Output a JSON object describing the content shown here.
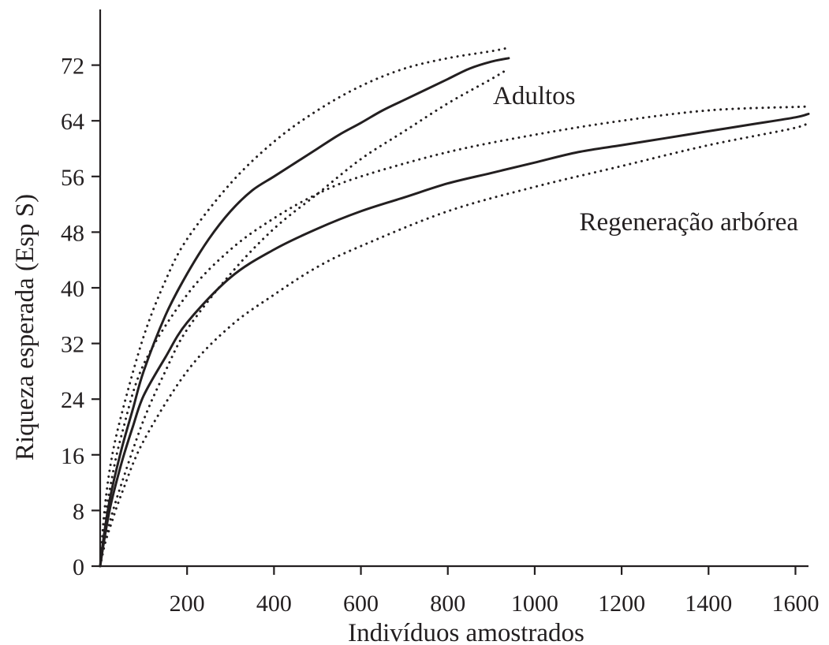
{
  "chart_data": {
    "type": "line",
    "title": "",
    "xlabel": "Indivíduos amostrados",
    "ylabel": "Riqueza esperada (Esp S)",
    "xlim": [
      0,
      1630
    ],
    "ylim": [
      0,
      80
    ],
    "xticks": [
      200,
      400,
      600,
      800,
      1000,
      1200,
      1400,
      1600
    ],
    "yticks": [
      0,
      8,
      16,
      24,
      32,
      40,
      48,
      56,
      64,
      72
    ],
    "grid": false,
    "legend": "none",
    "colors": {
      "ink": "#231f20"
    },
    "series": [
      {
        "name": "Adultos",
        "line_style": "solid",
        "x": [
          0,
          10,
          25,
          50,
          75,
          100,
          150,
          200,
          250,
          300,
          350,
          400,
          450,
          500,
          550,
          600,
          650,
          700,
          750,
          800,
          850,
          900,
          940
        ],
        "y": [
          0,
          5,
          10.5,
          17,
          22.5,
          28,
          36,
          42,
          47,
          51,
          54,
          56,
          58,
          60,
          62,
          63.7,
          65.5,
          67,
          68.5,
          70,
          71.5,
          72.5,
          73
        ],
        "ci_upper": {
          "x": [
            0,
            10,
            25,
            50,
            100,
            150,
            200,
            300,
            400,
            500,
            600,
            700,
            800,
            900,
            940
          ],
          "y": [
            0,
            8,
            15,
            22,
            33,
            41,
            47,
            55,
            61,
            65.5,
            69,
            71.5,
            73,
            74,
            74.5
          ]
        },
        "ci_lower": {
          "x": [
            0,
            10,
            25,
            50,
            100,
            150,
            200,
            300,
            400,
            500,
            600,
            700,
            800,
            900,
            940
          ],
          "y": [
            0,
            3,
            7,
            12,
            21,
            28,
            34,
            42,
            48.5,
            53.5,
            58.5,
            62.5,
            66.5,
            70,
            71.5
          ]
        }
      },
      {
        "name": "Regeneração arbórea",
        "line_style": "solid",
        "x": [
          0,
          10,
          25,
          50,
          75,
          100,
          150,
          200,
          300,
          400,
          500,
          600,
          700,
          800,
          900,
          1000,
          1100,
          1200,
          1300,
          1400,
          1500,
          1600,
          1630
        ],
        "y": [
          0,
          4,
          9,
          15,
          20,
          24.5,
          30,
          35,
          41.5,
          45.5,
          48.5,
          51,
          53,
          55,
          56.5,
          58,
          59.5,
          60.5,
          61.5,
          62.5,
          63.5,
          64.5,
          65
        ],
        "ci_upper": {
          "x": [
            0,
            10,
            25,
            50,
            100,
            200,
            300,
            400,
            500,
            600,
            800,
            1000,
            1200,
            1400,
            1600,
            1630
          ],
          "y": [
            0,
            6,
            12,
            19,
            29,
            39,
            45.5,
            50,
            53.5,
            56,
            59.5,
            62,
            64,
            65.5,
            66,
            66
          ]
        },
        "ci_lower": {
          "x": [
            0,
            10,
            25,
            50,
            100,
            200,
            300,
            400,
            500,
            600,
            800,
            1000,
            1200,
            1400,
            1600,
            1630
          ],
          "y": [
            0,
            3,
            6,
            10.5,
            18,
            28,
            34.5,
            39,
            43,
            46,
            51,
            54.5,
            57.5,
            60.5,
            63,
            64
          ]
        }
      }
    ]
  }
}
